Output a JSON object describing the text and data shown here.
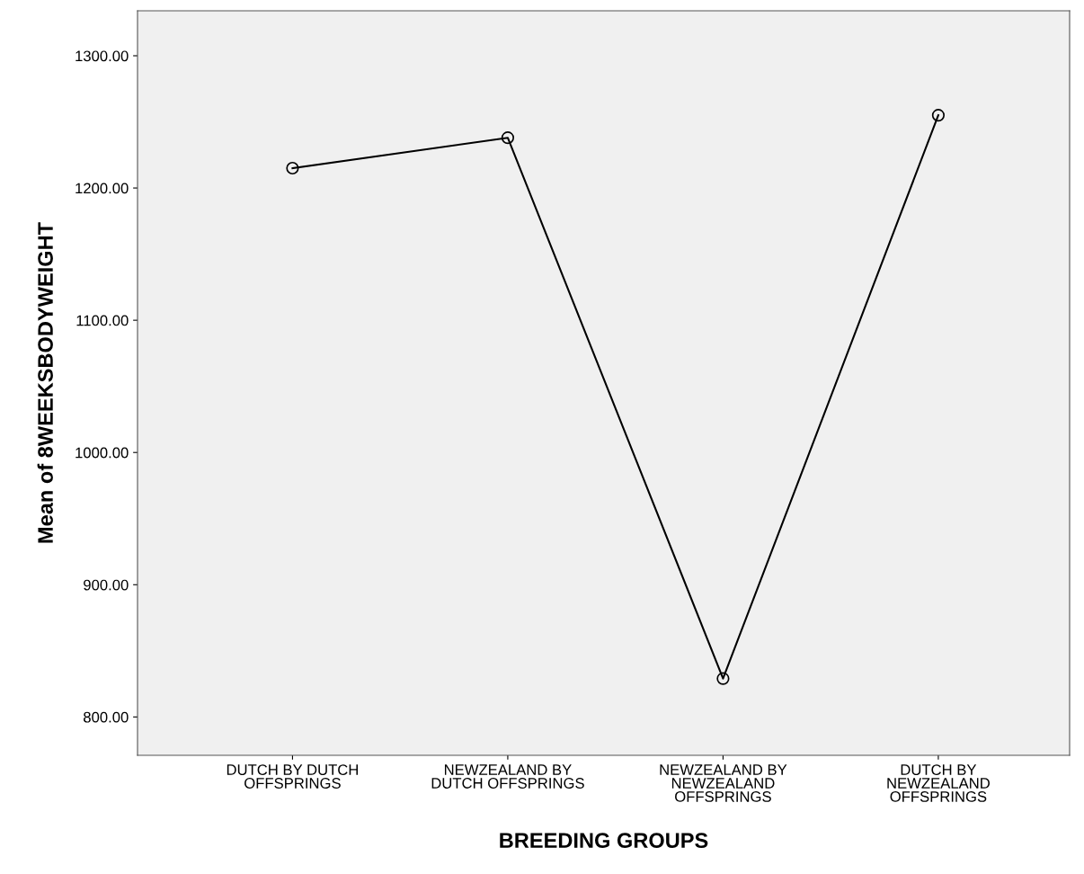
{
  "chart_data": {
    "type": "line",
    "xlabel": "BREEDING GROUPS",
    "ylabel": "Mean of 8WEEKSBODYWEIGHT",
    "categories": [
      "DUTCH BY DUTCH\nOFFSPRINGS",
      "NEWZEALAND BY\nDUTCH OFFSPRINGS",
      "NEWZEALAND BY\nNEWZEALAND\nOFFSPRINGS",
      "DUTCH BY\nNEWZEALAND\nOFFSPRINGS"
    ],
    "series": [
      {
        "color": "#000000",
        "values": [
          1215,
          1238,
          829,
          1255
        ]
      }
    ],
    "ylim": [
      771,
      1334
    ],
    "yticks": [
      {
        "value": 800,
        "label": "800.00"
      },
      {
        "value": 900,
        "label": "900.00"
      },
      {
        "value": 1000,
        "label": "1000.00"
      },
      {
        "value": 1100,
        "label": "1100.00"
      },
      {
        "value": 1200,
        "label": "1200.00"
      },
      {
        "value": 1300,
        "label": "1300.00"
      }
    ],
    "marker": "circle",
    "line_style": "solid",
    "grid": false,
    "legend": false
  }
}
